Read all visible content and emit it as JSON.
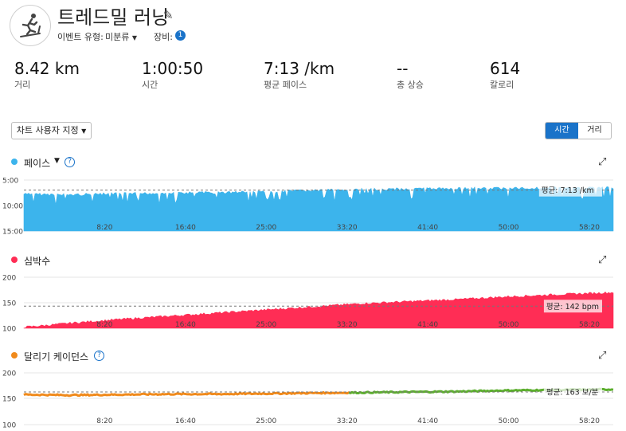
{
  "header": {
    "title": "트레드밀 러닝",
    "event_type_label": "이벤트 유형:",
    "event_type_value": "미분류",
    "equipment_label": "장비:",
    "equipment_count": "1"
  },
  "stats": [
    {
      "value": "8.42 km",
      "label": "거리"
    },
    {
      "value": "1:00:50",
      "label": "시간"
    },
    {
      "value": "7:13 /km",
      "label": "평균 페이스"
    },
    {
      "value": "--",
      "label": "총 상승"
    },
    {
      "value": "614",
      "label": "칼로리"
    }
  ],
  "controls": {
    "customize_chart": "차트 사용자 지정",
    "toggle": [
      "시간",
      "거리"
    ],
    "toggle_selected": "시간"
  },
  "time_ticks": [
    "8:20",
    "16:40",
    "25:00",
    "33:20",
    "41:40",
    "50:00",
    "58:20"
  ],
  "chart_data": [
    {
      "type": "area",
      "title": "페이스",
      "y_ticks": [
        "5:00",
        "10:00",
        "15:00"
      ],
      "ylim": [
        5,
        15
      ],
      "y_inverted": true,
      "average_label": "평균: 7:13 /km",
      "average_value": 7.22,
      "color": "#3cb4ec",
      "series": [
        {
          "x_minutes": [
            0,
            5,
            10,
            15,
            20,
            25,
            30,
            35,
            40,
            45,
            50,
            55,
            60.8
          ],
          "values": [
            8.0,
            8.1,
            7.9,
            7.8,
            7.7,
            7.5,
            7.3,
            7.1,
            7.0,
            6.9,
            6.9,
            6.8,
            6.8
          ]
        }
      ]
    },
    {
      "type": "area",
      "title": "심박수",
      "y_ticks": [
        "200",
        "150",
        "100"
      ],
      "ylim": [
        100,
        200
      ],
      "average_label": "평균: 142 bpm",
      "average_value": 142,
      "color": "#ff2d55",
      "series": [
        {
          "x_minutes": [
            0,
            2,
            5,
            10,
            15,
            20,
            25,
            30,
            35,
            40,
            45,
            50,
            55,
            60.8
          ],
          "values": [
            102,
            105,
            110,
            117,
            123,
            129,
            135,
            141,
            147,
            151,
            155,
            160,
            164,
            168
          ]
        }
      ]
    },
    {
      "type": "line",
      "title": "달리기 케이던스",
      "y_ticks": [
        "200",
        "150",
        "100"
      ],
      "ylim": [
        100,
        200
      ],
      "average_label": "평균: 163 보/분",
      "average_value": 163,
      "colors": [
        "#f08a1c",
        "#5cae2e"
      ],
      "series": [
        {
          "x_minutes": [
            0,
            5,
            10,
            15,
            20,
            25,
            30,
            35,
            40,
            45,
            50,
            55,
            60.8
          ],
          "values": [
            158,
            157,
            158,
            159,
            159,
            160,
            161,
            162,
            163,
            164,
            166,
            167,
            168
          ]
        }
      ]
    }
  ]
}
